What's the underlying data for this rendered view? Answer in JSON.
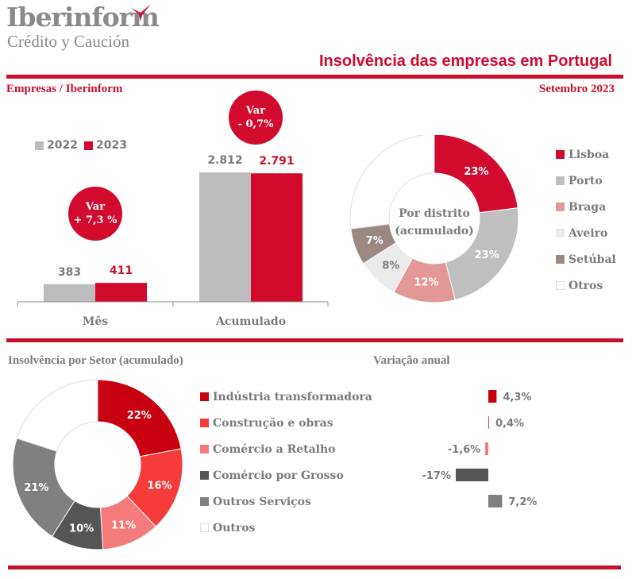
{
  "header": {
    "logo_name": "Iberinform",
    "logo_subtitle": "Crédito y Caución",
    "title": "Insolvência das empresas em Portugal",
    "subtitle_left": "Empresas / Iberinform",
    "subtitle_right": "Setembro 2023"
  },
  "colors": {
    "brand_red": "#c8102e",
    "bar_2022": "#bdbdbd",
    "bar_2023": "#d10a2e"
  },
  "variation_badges": [
    {
      "label": "Var",
      "value": "+ 7,3 %"
    },
    {
      "label": "Var",
      "value": "- 0,7%"
    }
  ],
  "chart_data": [
    {
      "type": "bar",
      "title": "Empresas / Iberinform",
      "categories": [
        "Mês",
        "Acumulado"
      ],
      "series": [
        {
          "name": "2022",
          "values": [
            383,
            2812
          ],
          "labels": [
            "383",
            "2.812"
          ],
          "color": "#bdbdbd"
        },
        {
          "name": "2023",
          "values": [
            411,
            2791
          ],
          "labels": [
            "411",
            "2.791"
          ],
          "color": "#d10a2e"
        }
      ],
      "ylim": [
        0,
        3000
      ],
      "legend": "top-left",
      "grid": false
    },
    {
      "type": "pie",
      "title": "Por distrito (acumulado)",
      "center_label": [
        "Por distrito",
        "(acumulado)"
      ],
      "slices": [
        {
          "name": "Lisboa",
          "value": 23,
          "label": "23%",
          "color": "#d10a2e",
          "label_color": "#ffffff"
        },
        {
          "name": "Porto",
          "value": 23,
          "label": "23%",
          "color": "#bfbfbf",
          "label_color": "#ffffff"
        },
        {
          "name": "Braga",
          "value": 12,
          "label": "12%",
          "color": "#e39797",
          "label_color": "#ffffff"
        },
        {
          "name": "Aveiro",
          "value": 8,
          "label": "8%",
          "color": "#ebebeb",
          "label_color": "#7a7a7a"
        },
        {
          "name": "Setúbal",
          "value": 7,
          "label": "7%",
          "color": "#9b8882",
          "label_color": "#ffffff"
        },
        {
          "name": "Otros",
          "value": 27,
          "label": "",
          "color": "#ffffff",
          "label_color": "#7a7a7a"
        }
      ],
      "legend": "right"
    },
    {
      "type": "pie",
      "title": "Insolvência por Setor (acumulado)",
      "slices": [
        {
          "name": "Indústria transformadora",
          "value": 22,
          "label": "22%",
          "color": "#c8000f",
          "label_color": "#ffffff"
        },
        {
          "name": "Construção e obras",
          "value": 16,
          "label": "16%",
          "color": "#f63b3b",
          "label_color": "#ffffff"
        },
        {
          "name": "Comércio a Retalho",
          "value": 11,
          "label": "11%",
          "color": "#f57a7a",
          "label_color": "#ffffff"
        },
        {
          "name": "Comércio por Grosso",
          "value": 10,
          "label": "10%",
          "color": "#555555",
          "label_color": "#ffffff"
        },
        {
          "name": "Outros Serviços",
          "value": 21,
          "label": "21%",
          "color": "#808080",
          "label_color": "#ffffff"
        },
        {
          "name": "Outros",
          "value": 20,
          "label": "",
          "color": "#ffffff",
          "label_color": "#7a7a7a"
        }
      ],
      "legend": "right"
    },
    {
      "type": "bar",
      "orientation": "horizontal",
      "title": "Variação anual",
      "categories": [
        "Indústria transformadora",
        "Construção e obras",
        "Comércio a Retalho",
        "Comércio por Grosso",
        "Outros Serviços"
      ],
      "values": [
        4.3,
        0.4,
        -1.6,
        -17,
        7.2
      ],
      "labels": [
        "4,3%",
        "0,4%",
        "-1,6%",
        "-17%",
        "7,2%"
      ],
      "colors": [
        "#c8000f",
        "#f63b3b",
        "#f57a7a",
        "#555555",
        "#808080"
      ],
      "xlim": [
        -20,
        10
      ]
    }
  ]
}
